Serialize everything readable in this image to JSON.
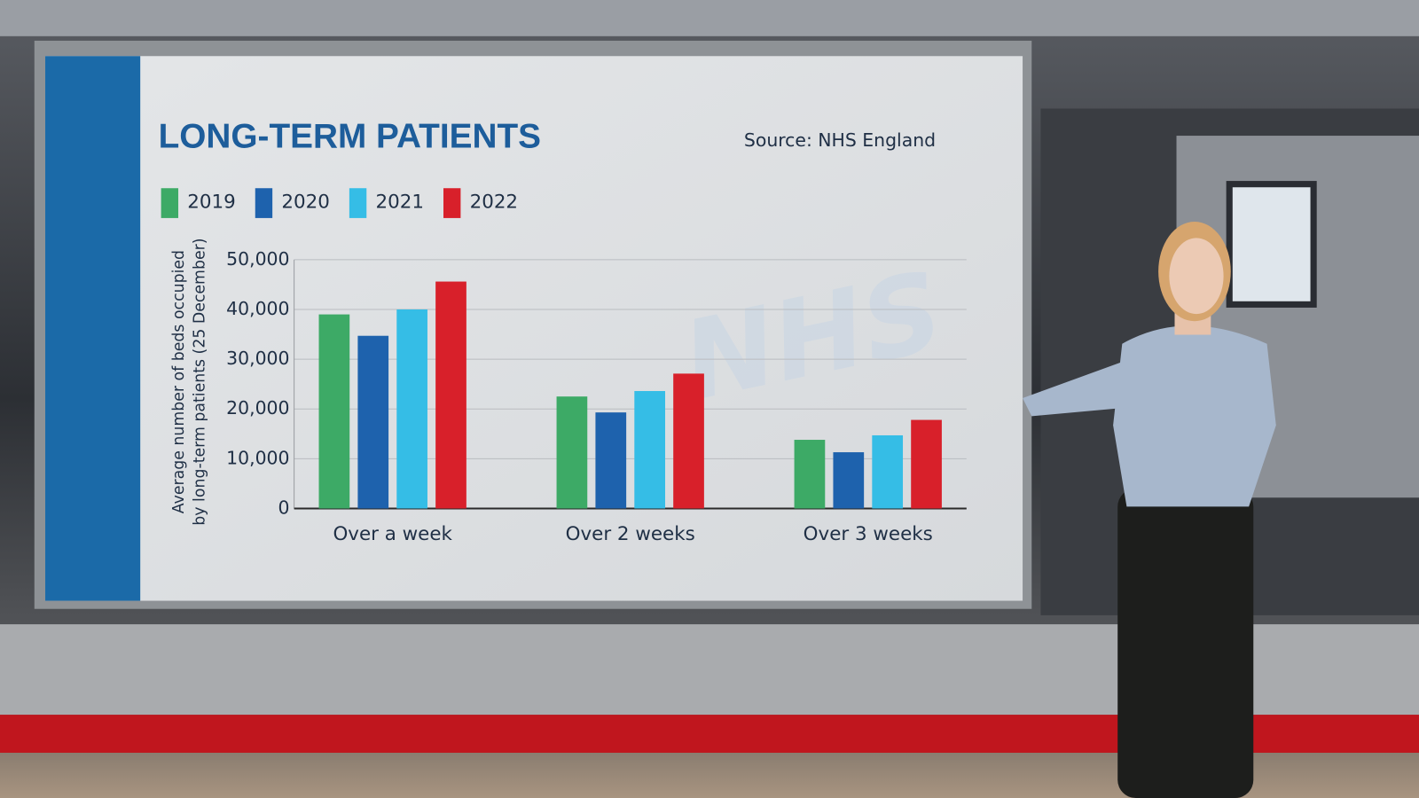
{
  "chart_data": {
    "type": "bar",
    "title": "LONG-TERM PATIENTS",
    "source": "Source: NHS England",
    "watermark": "NHS",
    "ylabel": [
      "Average number of beds occupied",
      "by long-term patients (25 December)"
    ],
    "categories": [
      "Over a week",
      "Over 2 weeks",
      "Over 3 weeks"
    ],
    "series": [
      {
        "name": "2019",
        "color": "#3daa66",
        "values": [
          39000,
          22500,
          13800
        ]
      },
      {
        "name": "2020",
        "color": "#1e62ad",
        "values": [
          34700,
          19300,
          11300
        ]
      },
      {
        "name": "2021",
        "color": "#35bde6",
        "values": [
          40000,
          23600,
          14700
        ]
      },
      {
        "name": "2022",
        "color": "#d8202a",
        "values": [
          45600,
          27100,
          17800
        ]
      }
    ],
    "ylim": [
      0,
      50000
    ],
    "yticks": [
      0,
      {
        "value": 10000,
        "label": "10,000"
      },
      {
        "value": 20000,
        "label": "20,000"
      },
      {
        "value": 30000,
        "label": "30,000"
      },
      {
        "value": 40000,
        "label": "40,000"
      },
      {
        "value": 50000,
        "label": "50,000"
      }
    ],
    "grid": true
  }
}
